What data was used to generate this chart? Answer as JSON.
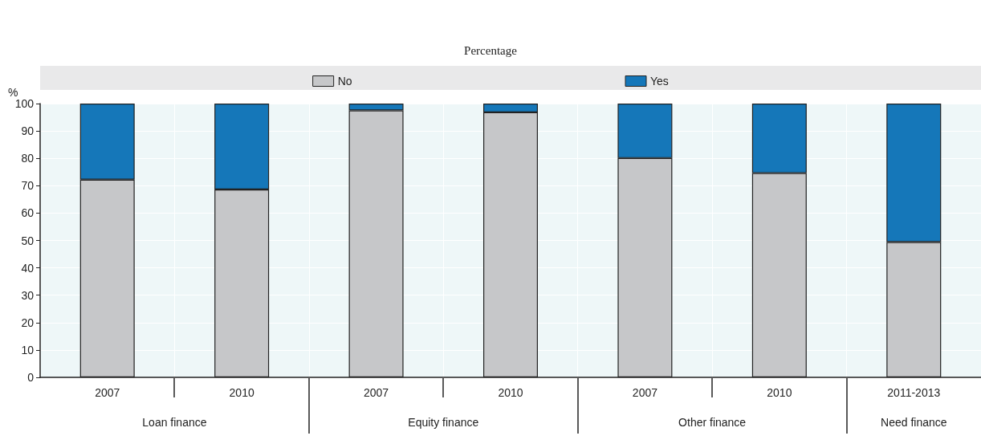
{
  "chart_data": {
    "type": "bar",
    "title": "Percentage",
    "ylabel": "%",
    "categories": [
      "2007",
      "2010",
      "2007",
      "2010",
      "2007",
      "2010",
      "2011-2013"
    ],
    "series": [
      {
        "name": "No",
        "color": "#c6c7c9",
        "values": [
          72.2,
          68.6,
          97.5,
          96.8,
          80.1,
          74.6,
          49.4
        ]
      },
      {
        "name": "Yes",
        "color": "#1577b9",
        "values": [
          27.8,
          31.4,
          2.5,
          3.2,
          19.9,
          25.4,
          50.6
        ]
      }
    ],
    "stacked": true,
    "ylim": [
      0,
      100
    ],
    "yticks": [
      0,
      10,
      20,
      30,
      40,
      50,
      60,
      70,
      80,
      90,
      100
    ],
    "grid": true,
    "legend": "top",
    "annotations": [
      "Loan finance",
      "Equity finance",
      "Other finance",
      "Need finance"
    ]
  }
}
